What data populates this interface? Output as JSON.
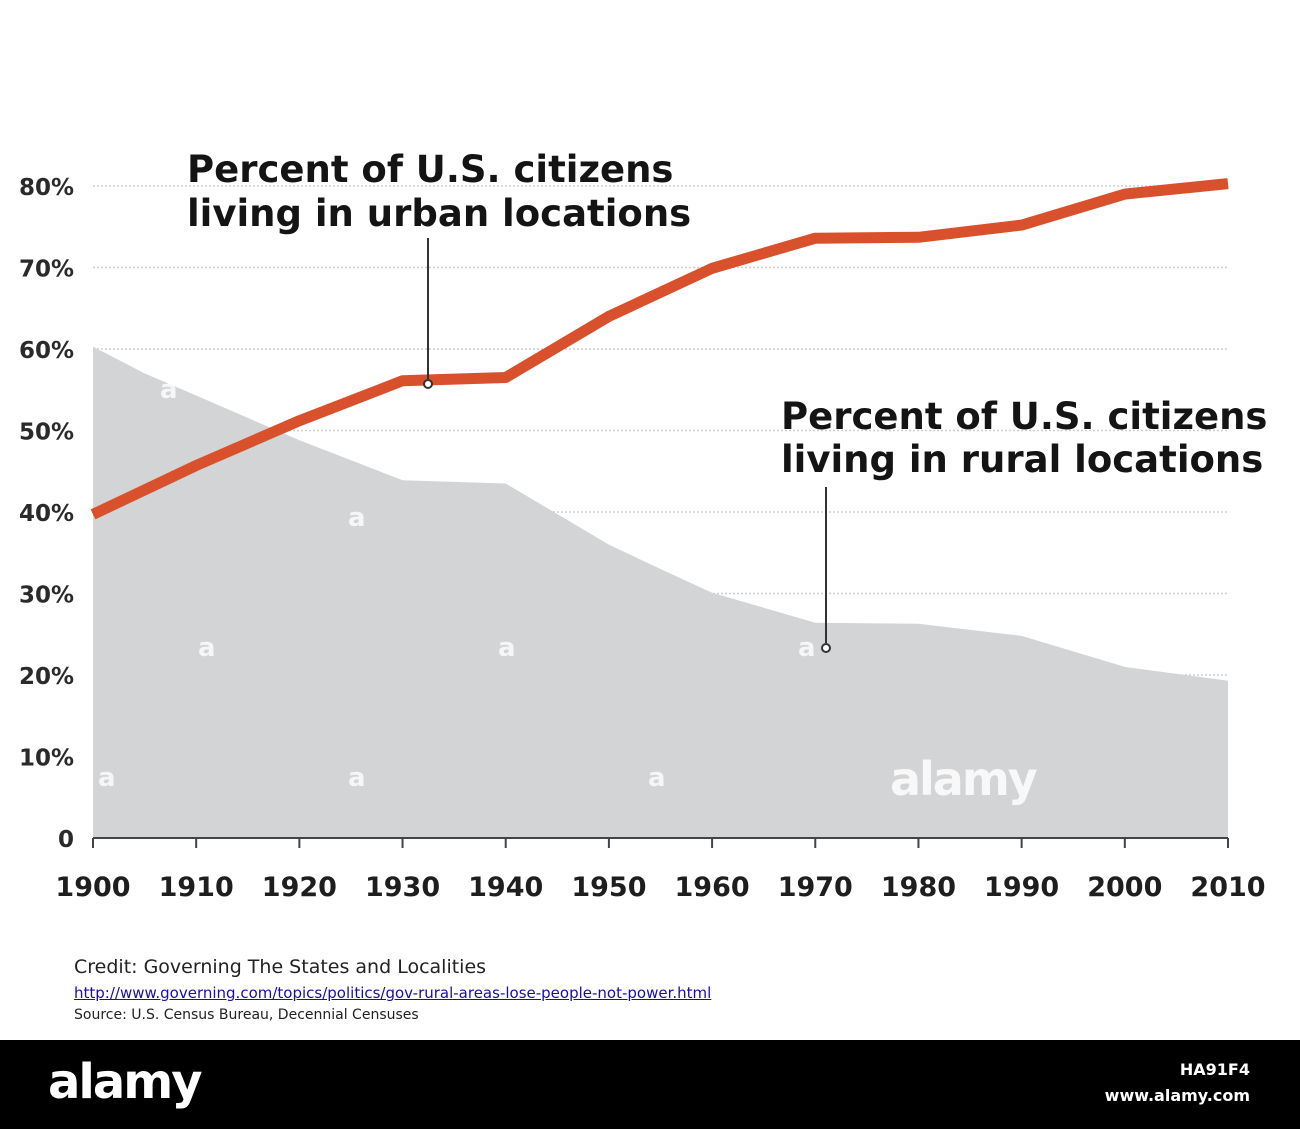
{
  "chart_data": {
    "type": "area",
    "x": [
      1900,
      1910,
      1920,
      1930,
      1940,
      1950,
      1960,
      1970,
      1980,
      1990,
      2000,
      2010
    ],
    "x_tick_labels": [
      "1900",
      "1910",
      "1920",
      "1930",
      "1940",
      "1950",
      "1960",
      "1970",
      "1980",
      "1990",
      "2000",
      "2010"
    ],
    "y_tick_values": [
      0,
      10,
      20,
      30,
      40,
      50,
      60,
      70,
      80
    ],
    "y_tick_labels": [
      "0",
      "10%",
      "20%",
      "30%",
      "40%",
      "50%",
      "60%",
      "70%",
      "80%"
    ],
    "ylim": [
      0,
      82
    ],
    "grid": true,
    "series": [
      {
        "name": "Percent of U.S. citizens living in urban locations",
        "render": "line",
        "color": "#d9512c",
        "x": [
          1900,
          1910,
          1920,
          1930,
          1940,
          1950,
          1960,
          1970,
          1980,
          1990,
          2000,
          2010
        ],
        "values": [
          39.7,
          45.7,
          51.2,
          56.1,
          56.5,
          64.0,
          69.9,
          73.6,
          73.7,
          75.2,
          79.0,
          80.3
        ]
      },
      {
        "name": "Percent of U.S. citizens living in rural locations",
        "render": "area",
        "color": "#d3d4d6",
        "x": [
          1900,
          1905,
          1910,
          1920,
          1930,
          1940,
          1950,
          1955,
          1960,
          1970,
          1980,
          1990,
          2000,
          2010
        ],
        "values": [
          60.3,
          57.0,
          54.3,
          48.8,
          43.9,
          43.5,
          36.0,
          33.0,
          30.1,
          26.4,
          26.3,
          24.8,
          21.0,
          19.3
        ]
      }
    ],
    "annotations": {
      "urban_line1": "Percent of U.S. citizens",
      "urban_line2": "living in urban locations",
      "rural_line1": "Percent of U.S. citizens",
      "rural_line2": "living in rural locations"
    }
  },
  "credit": {
    "line": "Credit: Governing The States and Localities",
    "url": "http://www.governing.com/topics/politics/gov-rural-areas-lose-people-not-power.html",
    "source": "Source: U.S. Census Bureau, Decennial Censuses"
  },
  "watermark": {
    "small": "a",
    "big": "alamy",
    "id": "HA91F4",
    "site": "www.alamy.com"
  }
}
